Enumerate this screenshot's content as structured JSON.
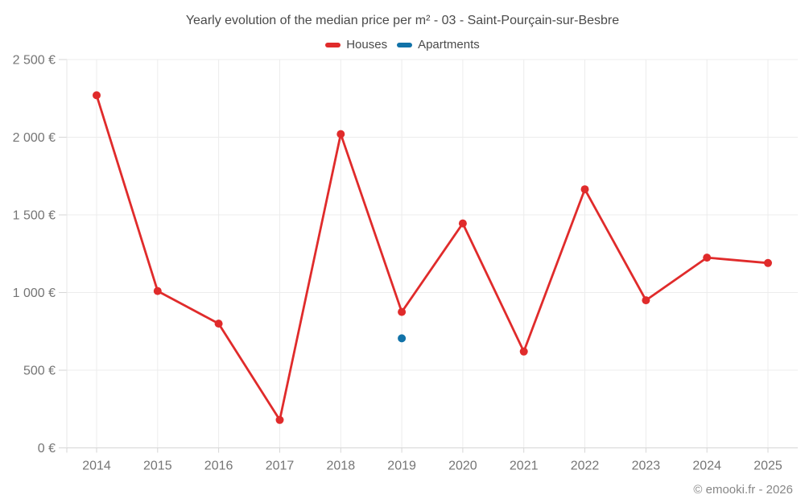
{
  "title": "Yearly evolution of the median price per m² - 03 - Saint-Pourçain-sur-Besbre",
  "legend": [
    {
      "label": "Houses",
      "color": "#e02b2b"
    },
    {
      "label": "Apartments",
      "color": "#1172a8"
    }
  ],
  "footer": "© emooki.fr - 2026",
  "colors": {
    "houses": "#e02b2b",
    "apartments": "#1172a8",
    "gridline": "#ececec",
    "axis": "#d6d6d6",
    "y_axis": "#e7e7e7",
    "tick_text": "#757575",
    "title_text": "#4a4a4a",
    "footer_text": "#878787"
  },
  "chart_data": {
    "type": "line",
    "title": "Yearly evolution of the median price per m² - 03 - Saint-Pourçain-sur-Besbre",
    "x": [
      2014,
      2015,
      2016,
      2017,
      2018,
      2019,
      2020,
      2021,
      2022,
      2023,
      2024,
      2025
    ],
    "series": [
      {
        "name": "Houses",
        "color": "#e02b2b",
        "values": [
          2270,
          1010,
          800,
          180,
          2020,
          875,
          1445,
          620,
          1665,
          950,
          1225,
          1190
        ]
      },
      {
        "name": "Apartments",
        "color": "#1172a8",
        "values": [
          null,
          null,
          null,
          null,
          null,
          705,
          null,
          null,
          null,
          null,
          null,
          null
        ]
      }
    ],
    "xlabel": "",
    "ylabel": "",
    "ylim": [
      0,
      2500
    ],
    "yticks": [
      0,
      500,
      1000,
      1500,
      2000,
      2500
    ],
    "ytick_labels": [
      "0 €",
      "500 €",
      "1 000 €",
      "1 500 €",
      "2 000 €",
      "2 500 €"
    ],
    "grid": true,
    "legend_position": "top"
  }
}
